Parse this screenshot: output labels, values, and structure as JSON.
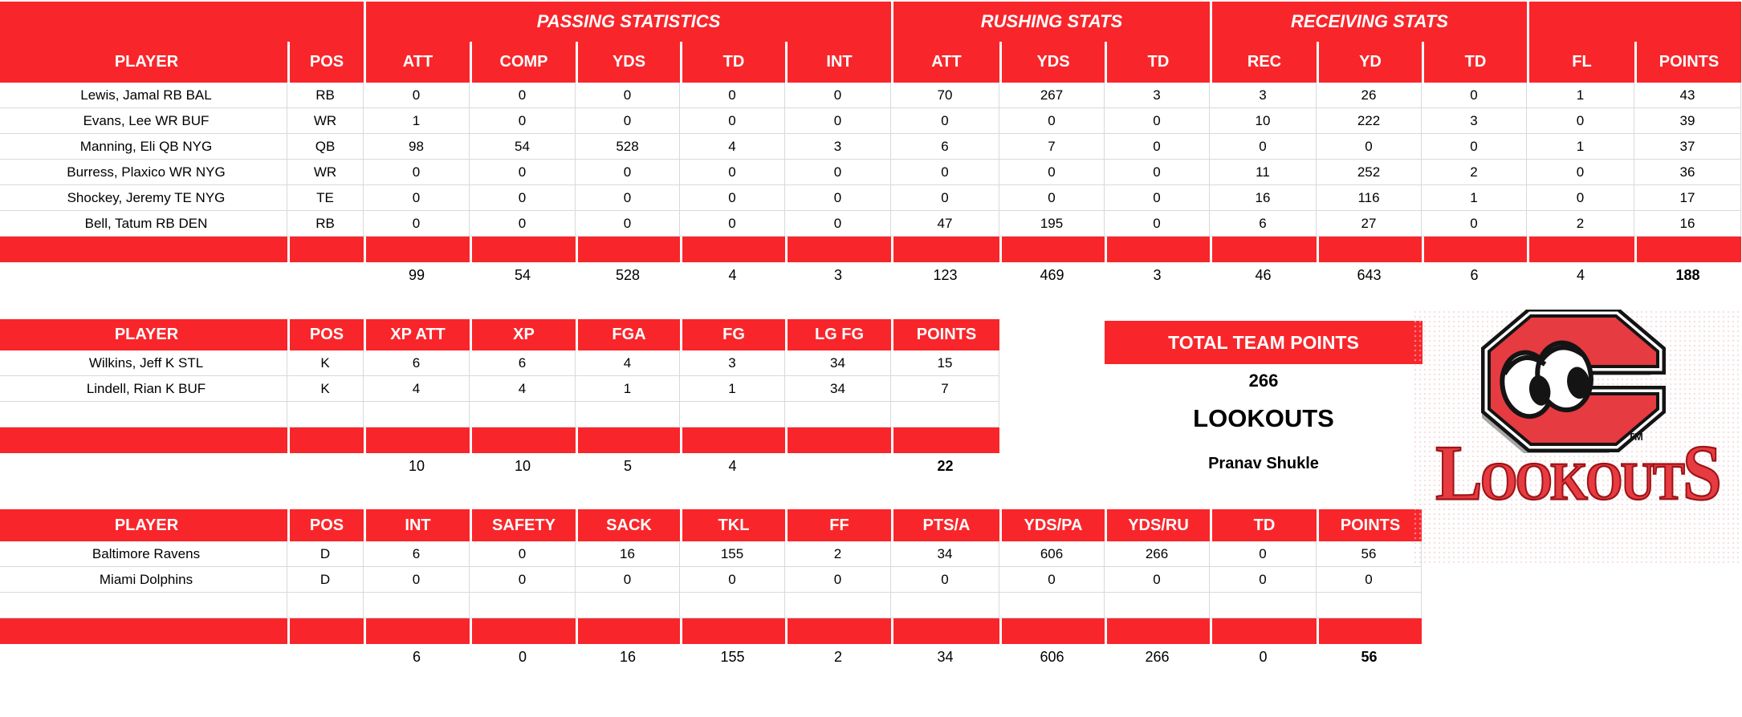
{
  "colors": {
    "header_red": "#f8262b",
    "gridline": "#d9d9d9",
    "logo_red": "#e63b40",
    "logo_dark": "#9e1418",
    "shadow": "#a6a6a6"
  },
  "tables": {
    "offense": {
      "section_headers": [
        "PASSING STATISTICS",
        "RUSHING STATS",
        "RECEIVING STATS"
      ],
      "columns": [
        "PLAYER",
        "POS",
        "ATT",
        "COMP",
        "YDS",
        "TD",
        "INT",
        "ATT",
        "YDS",
        "TD",
        "REC",
        "YD",
        "TD",
        "FL",
        "POINTS"
      ],
      "rows": [
        {
          "player": "Lewis, Jamal RB BAL",
          "pos": "RB",
          "values": [
            "0",
            "0",
            "0",
            "0",
            "0",
            "70",
            "267",
            "3",
            "3",
            "26",
            "0",
            "1",
            "43"
          ]
        },
        {
          "player": "Evans, Lee WR BUF",
          "pos": "WR",
          "values": [
            "1",
            "0",
            "0",
            "0",
            "0",
            "0",
            "0",
            "0",
            "10",
            "222",
            "3",
            "0",
            "39"
          ]
        },
        {
          "player": "Manning, Eli QB NYG",
          "pos": "QB",
          "values": [
            "98",
            "54",
            "528",
            "4",
            "3",
            "6",
            "7",
            "0",
            "0",
            "0",
            "0",
            "1",
            "37"
          ]
        },
        {
          "player": "Burress, Plaxico WR NYG",
          "pos": "WR",
          "values": [
            "0",
            "0",
            "0",
            "0",
            "0",
            "0",
            "0",
            "0",
            "11",
            "252",
            "2",
            "0",
            "36"
          ]
        },
        {
          "player": "Shockey, Jeremy TE NYG",
          "pos": "TE",
          "values": [
            "0",
            "0",
            "0",
            "0",
            "0",
            "0",
            "0",
            "0",
            "16",
            "116",
            "1",
            "0",
            "17"
          ]
        },
        {
          "player": "Bell, Tatum RB DEN",
          "pos": "RB",
          "values": [
            "0",
            "0",
            "0",
            "0",
            "0",
            "47",
            "195",
            "0",
            "6",
            "27",
            "0",
            "2",
            "16"
          ]
        }
      ],
      "totals": [
        "99",
        "54",
        "528",
        "4",
        "3",
        "123",
        "469",
        "3",
        "46",
        "643",
        "6",
        "4",
        "188"
      ]
    },
    "kickers": {
      "columns": [
        "PLAYER",
        "POS",
        "XP ATT",
        "XP",
        "FGA",
        "FG",
        "LG FG",
        "POINTS"
      ],
      "rows": [
        {
          "player": "Wilkins, Jeff K STL",
          "pos": "K",
          "values": [
            "6",
            "6",
            "4",
            "3",
            "34",
            "15"
          ]
        },
        {
          "player": "Lindell, Rian K BUF",
          "pos": "K",
          "values": [
            "4",
            "4",
            "1",
            "1",
            "34",
            "7"
          ]
        }
      ],
      "totals": [
        "10",
        "10",
        "5",
        "4",
        "",
        "22"
      ]
    },
    "defense": {
      "columns": [
        "PLAYER",
        "POS",
        "INT",
        "SAFETY",
        "SACK",
        "TKL",
        "FF",
        "PTS/A",
        "YDS/PA",
        "YDS/RU",
        "TD",
        "POINTS"
      ],
      "rows": [
        {
          "player": "Baltimore Ravens",
          "pos": "D",
          "values": [
            "6",
            "0",
            "16",
            "155",
            "2",
            "34",
            "606",
            "266",
            "0",
            "56"
          ]
        },
        {
          "player": "Miami Dolphins",
          "pos": "D",
          "values": [
            "0",
            "0",
            "0",
            "0",
            "0",
            "0",
            "0",
            "0",
            "0",
            "0"
          ]
        }
      ],
      "totals": [
        "6",
        "0",
        "16",
        "155",
        "2",
        "34",
        "606",
        "266",
        "0",
        "56"
      ]
    }
  },
  "team_panel": {
    "banner": "TOTAL TEAM POINTS",
    "total_points": "266",
    "team_name": "LOOKOUTS",
    "owner": "Pranav Shukle"
  },
  "logo": {
    "tm": "TM",
    "wordmark": "LOOKOUTS"
  }
}
